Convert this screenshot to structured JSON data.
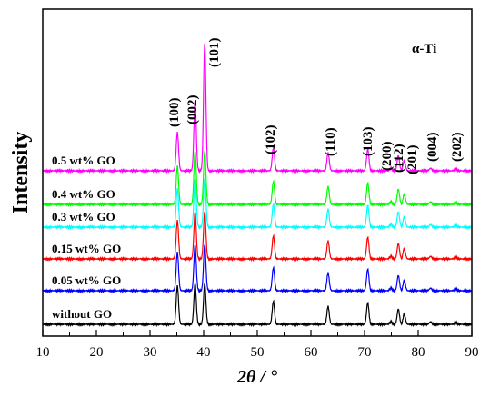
{
  "chart_data": {
    "type": "line",
    "title": "",
    "xlabel": "2θ / °",
    "ylabel": "Intensity",
    "xlim": [
      10,
      90
    ],
    "xticks": [
      10,
      20,
      30,
      40,
      50,
      60,
      70,
      80,
      90
    ],
    "yticks_shown": false,
    "grid": false,
    "legend": "none",
    "phase_label": "α-Ti",
    "peaks": [
      {
        "label": "(100)",
        "x": 35.1,
        "h": 0.3
      },
      {
        "label": "(002)",
        "x": 38.4,
        "h": 0.55
      },
      {
        "label": "(101)",
        "x": 40.2,
        "h": 1.0
      },
      {
        "label": "(102)",
        "x": 53.0,
        "h": 0.18
      },
      {
        "label": "(110)",
        "x": 63.2,
        "h": 0.14
      },
      {
        "label": "(103)",
        "x": 70.6,
        "h": 0.17
      },
      {
        "label": "(200)",
        "x": 74.9,
        "h": 0.02
      },
      {
        "label": "(112)",
        "x": 76.3,
        "h": 0.12
      },
      {
        "label": "(201)",
        "x": 77.4,
        "h": 0.08
      },
      {
        "label": "(004)",
        "x": 82.3,
        "h": 0.02
      },
      {
        "label": "(202)",
        "x": 87.0,
        "h": 0.015
      }
    ],
    "series": [
      {
        "name": "without GO",
        "color": "#000000",
        "max_height": 0.32
      },
      {
        "name": "0.05 wt% GO",
        "color": "#0000ff",
        "max_height": 0.36
      },
      {
        "name": "0.15 wt% GO",
        "color": "#ff0000",
        "max_height": 0.37
      },
      {
        "name": "0.3 wt% GO",
        "color": "#00ffff",
        "max_height": 0.38
      },
      {
        "name": "0.4 wt% GO",
        "color": "#00ff00",
        "max_height": 0.42
      },
      {
        "name": "0.5 wt% GO",
        "color": "#ff00ff",
        "max_height": 1.0
      }
    ]
  }
}
